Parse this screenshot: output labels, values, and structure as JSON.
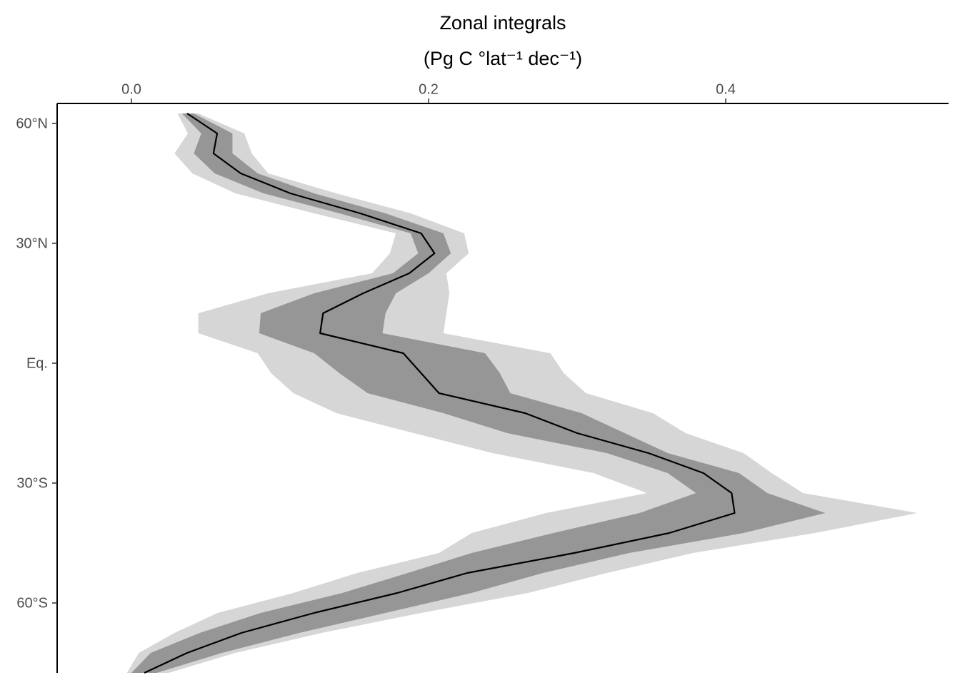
{
  "chart_data": {
    "type": "profile",
    "title": "Zonal integrals",
    "x_label": "(Pg C °lat⁻¹ dec⁻¹)",
    "xlim": [
      -0.05,
      0.55
    ],
    "xticks": [
      {
        "value": 0,
        "label": "0.0"
      },
      0.2,
      0.4
    ],
    "ylim": [
      -77.5,
      65
    ],
    "yticks": [
      {
        "value": 60,
        "label": "60°N"
      },
      {
        "value": 30,
        "label": "30°N"
      },
      {
        "value": 0,
        "label": "Eq."
      },
      {
        "value": -30,
        "label": "30°S"
      },
      {
        "value": -60,
        "label": "60°S"
      }
    ],
    "y": [
      62.5,
      57.5,
      52.5,
      47.5,
      42.5,
      37.5,
      32.5,
      27.5,
      22.5,
      17.5,
      12.5,
      7.5,
      2.5,
      -2.5,
      -7.5,
      -12.5,
      -17.5,
      -22.5,
      -27.5,
      -32.5,
      -37.5,
      -42.5,
      -47.5,
      -52.5,
      -57.5,
      -62.5,
      -67.5,
      -72.5,
      -77.5
    ],
    "bands": [
      {
        "color": "#d6d6d6",
        "lower": [
          0.031,
          0.038,
          0.029,
          0.041,
          0.07,
          0.123,
          0.178,
          0.174,
          0.162,
          0.092,
          0.045,
          0.045,
          0.085,
          0.094,
          0.109,
          0.138,
          0.19,
          0.243,
          0.311,
          0.347,
          0.279,
          0.229,
          0.207,
          0.152,
          0.109,
          0.058,
          0.029,
          0.005,
          -0.003
        ],
        "upper": [
          0.045,
          0.076,
          0.081,
          0.092,
          0.138,
          0.188,
          0.224,
          0.227,
          0.212,
          0.214,
          0.212,
          0.21,
          0.282,
          0.291,
          0.306,
          0.351,
          0.373,
          0.412,
          0.431,
          0.452,
          0.529,
          0.46,
          0.378,
          0.32,
          0.267,
          0.195,
          0.128,
          0.07,
          0.025
        ]
      },
      {
        "color": "#969696",
        "lower": [
          0.034,
          0.047,
          0.042,
          0.056,
          0.089,
          0.14,
          0.188,
          0.193,
          0.176,
          0.123,
          0.087,
          0.086,
          0.123,
          0.14,
          0.159,
          0.21,
          0.253,
          0.32,
          0.361,
          0.38,
          0.342,
          0.284,
          0.229,
          0.186,
          0.142,
          0.087,
          0.046,
          0.013,
          0.0
        ],
        "upper": [
          0.042,
          0.068,
          0.068,
          0.085,
          0.123,
          0.171,
          0.21,
          0.215,
          0.2,
          0.178,
          0.171,
          0.169,
          0.238,
          0.248,
          0.255,
          0.303,
          0.332,
          0.361,
          0.409,
          0.428,
          0.467,
          0.412,
          0.335,
          0.277,
          0.229,
          0.171,
          0.113,
          0.061,
          0.017
        ]
      }
    ],
    "series": [
      {
        "color": "#000000",
        "values": [
          0.0375,
          0.0577,
          0.0552,
          0.0736,
          0.107,
          0.154,
          0.195,
          0.204,
          0.187,
          0.156,
          0.129,
          0.127,
          0.183,
          0.195,
          0.207,
          0.265,
          0.3,
          0.348,
          0.385,
          0.404,
          0.406,
          0.362,
          0.298,
          0.226,
          0.179,
          0.123,
          0.074,
          0.0375,
          0.0087
        ]
      }
    ]
  }
}
